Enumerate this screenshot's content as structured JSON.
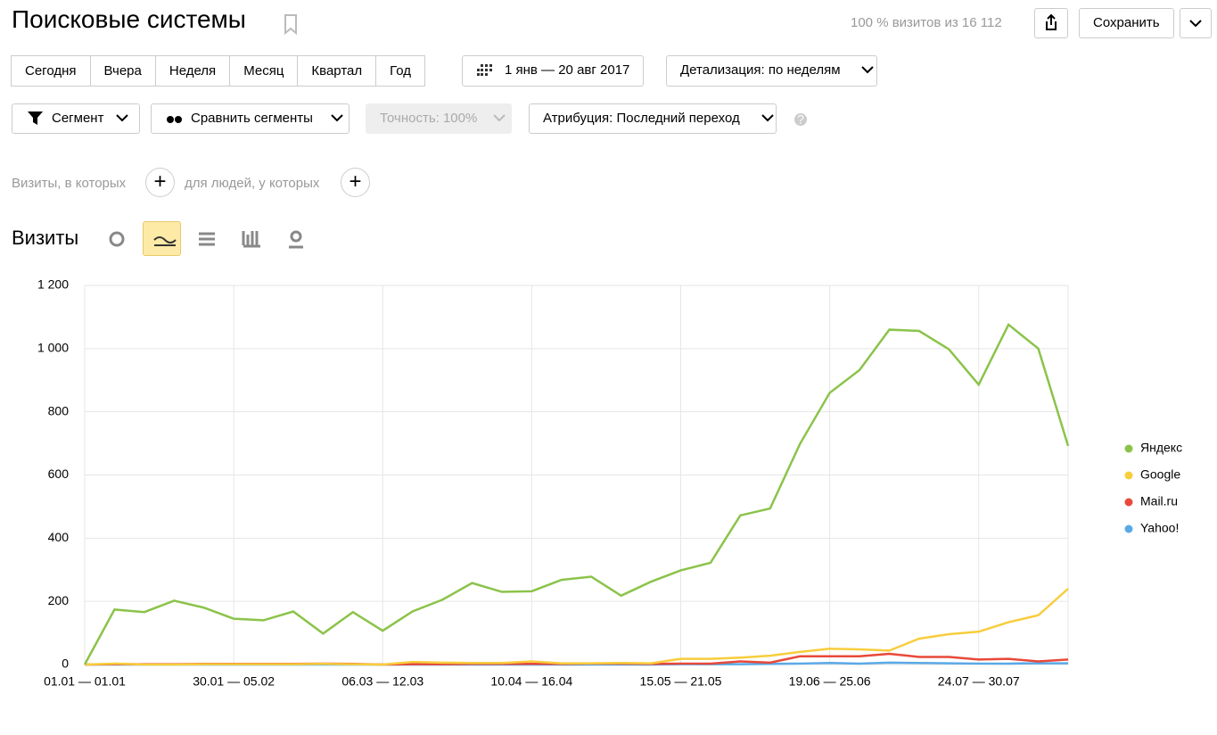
{
  "header": {
    "title": "Поисковые системы",
    "share": "100 % визитов из 16 112",
    "save": "Сохранить"
  },
  "periods": [
    "Сегодня",
    "Вчера",
    "Неделя",
    "Месяц",
    "Квартал",
    "Год"
  ],
  "date_range": "1 янв — 20 авг 2017",
  "detail": "Детализация: по неделям",
  "filters": {
    "segment": "Сегмент",
    "compare": "Сравнить сегменты",
    "accuracy": "Точность: 100%",
    "attribution": "Атрибуция: Последний переход"
  },
  "conditions": {
    "visits": "Визиты, в которых",
    "people": "для людей, у которых"
  },
  "metric": "Визиты",
  "chart_data": {
    "type": "line",
    "categories": [
      "01.01 — 01.01",
      null,
      null,
      null,
      null,
      "30.01 — 05.02",
      null,
      null,
      null,
      null,
      "06.03 — 12.03",
      null,
      null,
      null,
      null,
      "10.04 — 16.04",
      null,
      null,
      null,
      null,
      "15.05 — 21.05",
      null,
      null,
      null,
      null,
      "19.06 — 25.06",
      null,
      null,
      null,
      null,
      "24.07 — 30.07",
      null,
      null,
      null
    ],
    "series": [
      {
        "name": "Яндекс",
        "color": "#8bc34a",
        "values": [
          0,
          174,
          166,
          202,
          180,
          145,
          140,
          168,
          98,
          166,
          107,
          168,
          205,
          258,
          230,
          232,
          268,
          278,
          218,
          262,
          298,
          322,
          472,
          494,
          698,
          860,
          932,
          1060,
          1056,
          998,
          886,
          1076,
          1000,
          692
        ]
      },
      {
        "name": "Google",
        "color": "#f8cd3c",
        "values": [
          0,
          3,
          0,
          0,
          1,
          1,
          1,
          1,
          2,
          1,
          0,
          8,
          6,
          5,
          5,
          10,
          4,
          4,
          5,
          4,
          18,
          18,
          22,
          28,
          40,
          50,
          48,
          44,
          82,
          96,
          104,
          134,
          156,
          240
        ]
      },
      {
        "name": "Mail.ru",
        "color": "#e8493a",
        "values": [
          0,
          1,
          1,
          1,
          2,
          2,
          2,
          2,
          3,
          2,
          0,
          1,
          1,
          2,
          2,
          2,
          2,
          3,
          3,
          2,
          3,
          3,
          10,
          6,
          26,
          26,
          26,
          34,
          24,
          24,
          16,
          18,
          10,
          16
        ]
      },
      {
        "name": "Yahoo!",
        "color": "#5aa9e6",
        "values": [
          0,
          0,
          0,
          0,
          0,
          0,
          0,
          0,
          0,
          0,
          0,
          0,
          0,
          0,
          0,
          0,
          0,
          0,
          0,
          0,
          1,
          1,
          1,
          2,
          3,
          5,
          3,
          6,
          5,
          4,
          3,
          3,
          4,
          4
        ]
      }
    ],
    "ylim": [
      0,
      1200
    ],
    "yticks": [
      0,
      200,
      400,
      600,
      800,
      {
        "value": 1000,
        "label": "1 000"
      },
      {
        "value": 1200,
        "label": "1 200"
      }
    ],
    "grid": true,
    "legend": "right"
  }
}
